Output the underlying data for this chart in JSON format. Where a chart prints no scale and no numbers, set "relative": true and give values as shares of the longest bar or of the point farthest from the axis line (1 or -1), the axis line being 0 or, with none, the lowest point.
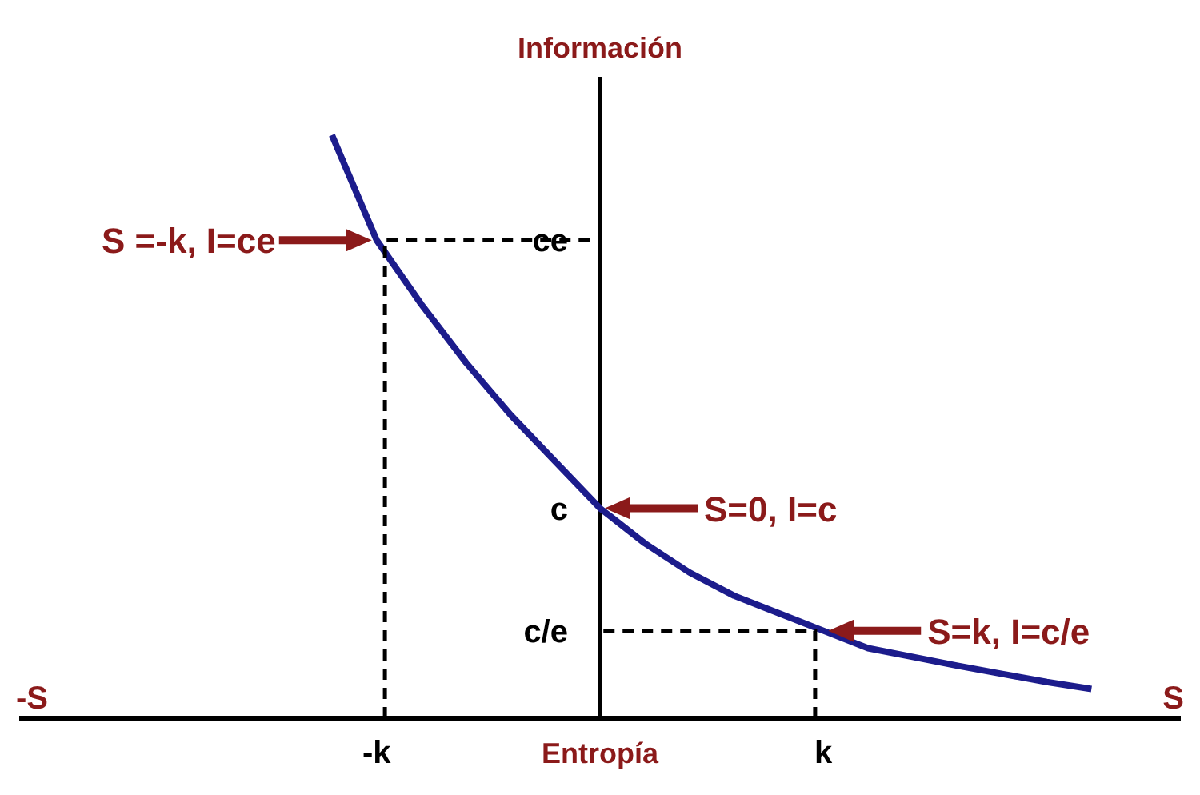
{
  "chart_data": {
    "type": "line",
    "ylabel": "Información",
    "relative": true,
    "categories": [
      null,
      null,
      null,
      null,
      null,
      null,
      null,
      null,
      "-k",
      null,
      null,
      null,
      null,
      "Entropía",
      null,
      null,
      null,
      null,
      "k",
      null,
      null,
      null,
      null,
      null,
      null,
      null,
      null
    ],
    "series": [
      {
        "color": "#1c1c8c",
        "values": [
          null,
          null,
          null,
          null,
          null,
          null,
          null,
          1,
          0.82,
          0.71,
          0.61,
          0.52,
          0.44,
          0.36,
          0.3,
          0.25,
          0.21,
          0.18,
          0.15,
          0.12,
          0.105,
          0.09,
          0.076,
          0.062,
          0.05,
          null,
          null
        ]
      }
    ],
    "ref_lines": [
      {
        "axis": "x",
        "value": "Entropía",
        "color": "#000000"
      }
    ],
    "annotations": [
      {
        "text": "S =-k, I=ce",
        "x": "-k",
        "y": 0.82
      },
      {
        "text": "S=0, I=c",
        "x": "Entropía",
        "y": 0.36
      },
      {
        "text": "S=k, I=c/e",
        "x": "k",
        "y": 0.15
      },
      {
        "text": "ce",
        "x": "Entropía",
        "y": 0.82
      },
      {
        "text": "c",
        "x": "Entropía",
        "y": 0.36
      },
      {
        "text": "c/e",
        "x": "Entropía",
        "y": 0.15
      },
      "-S",
      "S"
    ],
    "grid": false,
    "legend": false
  }
}
